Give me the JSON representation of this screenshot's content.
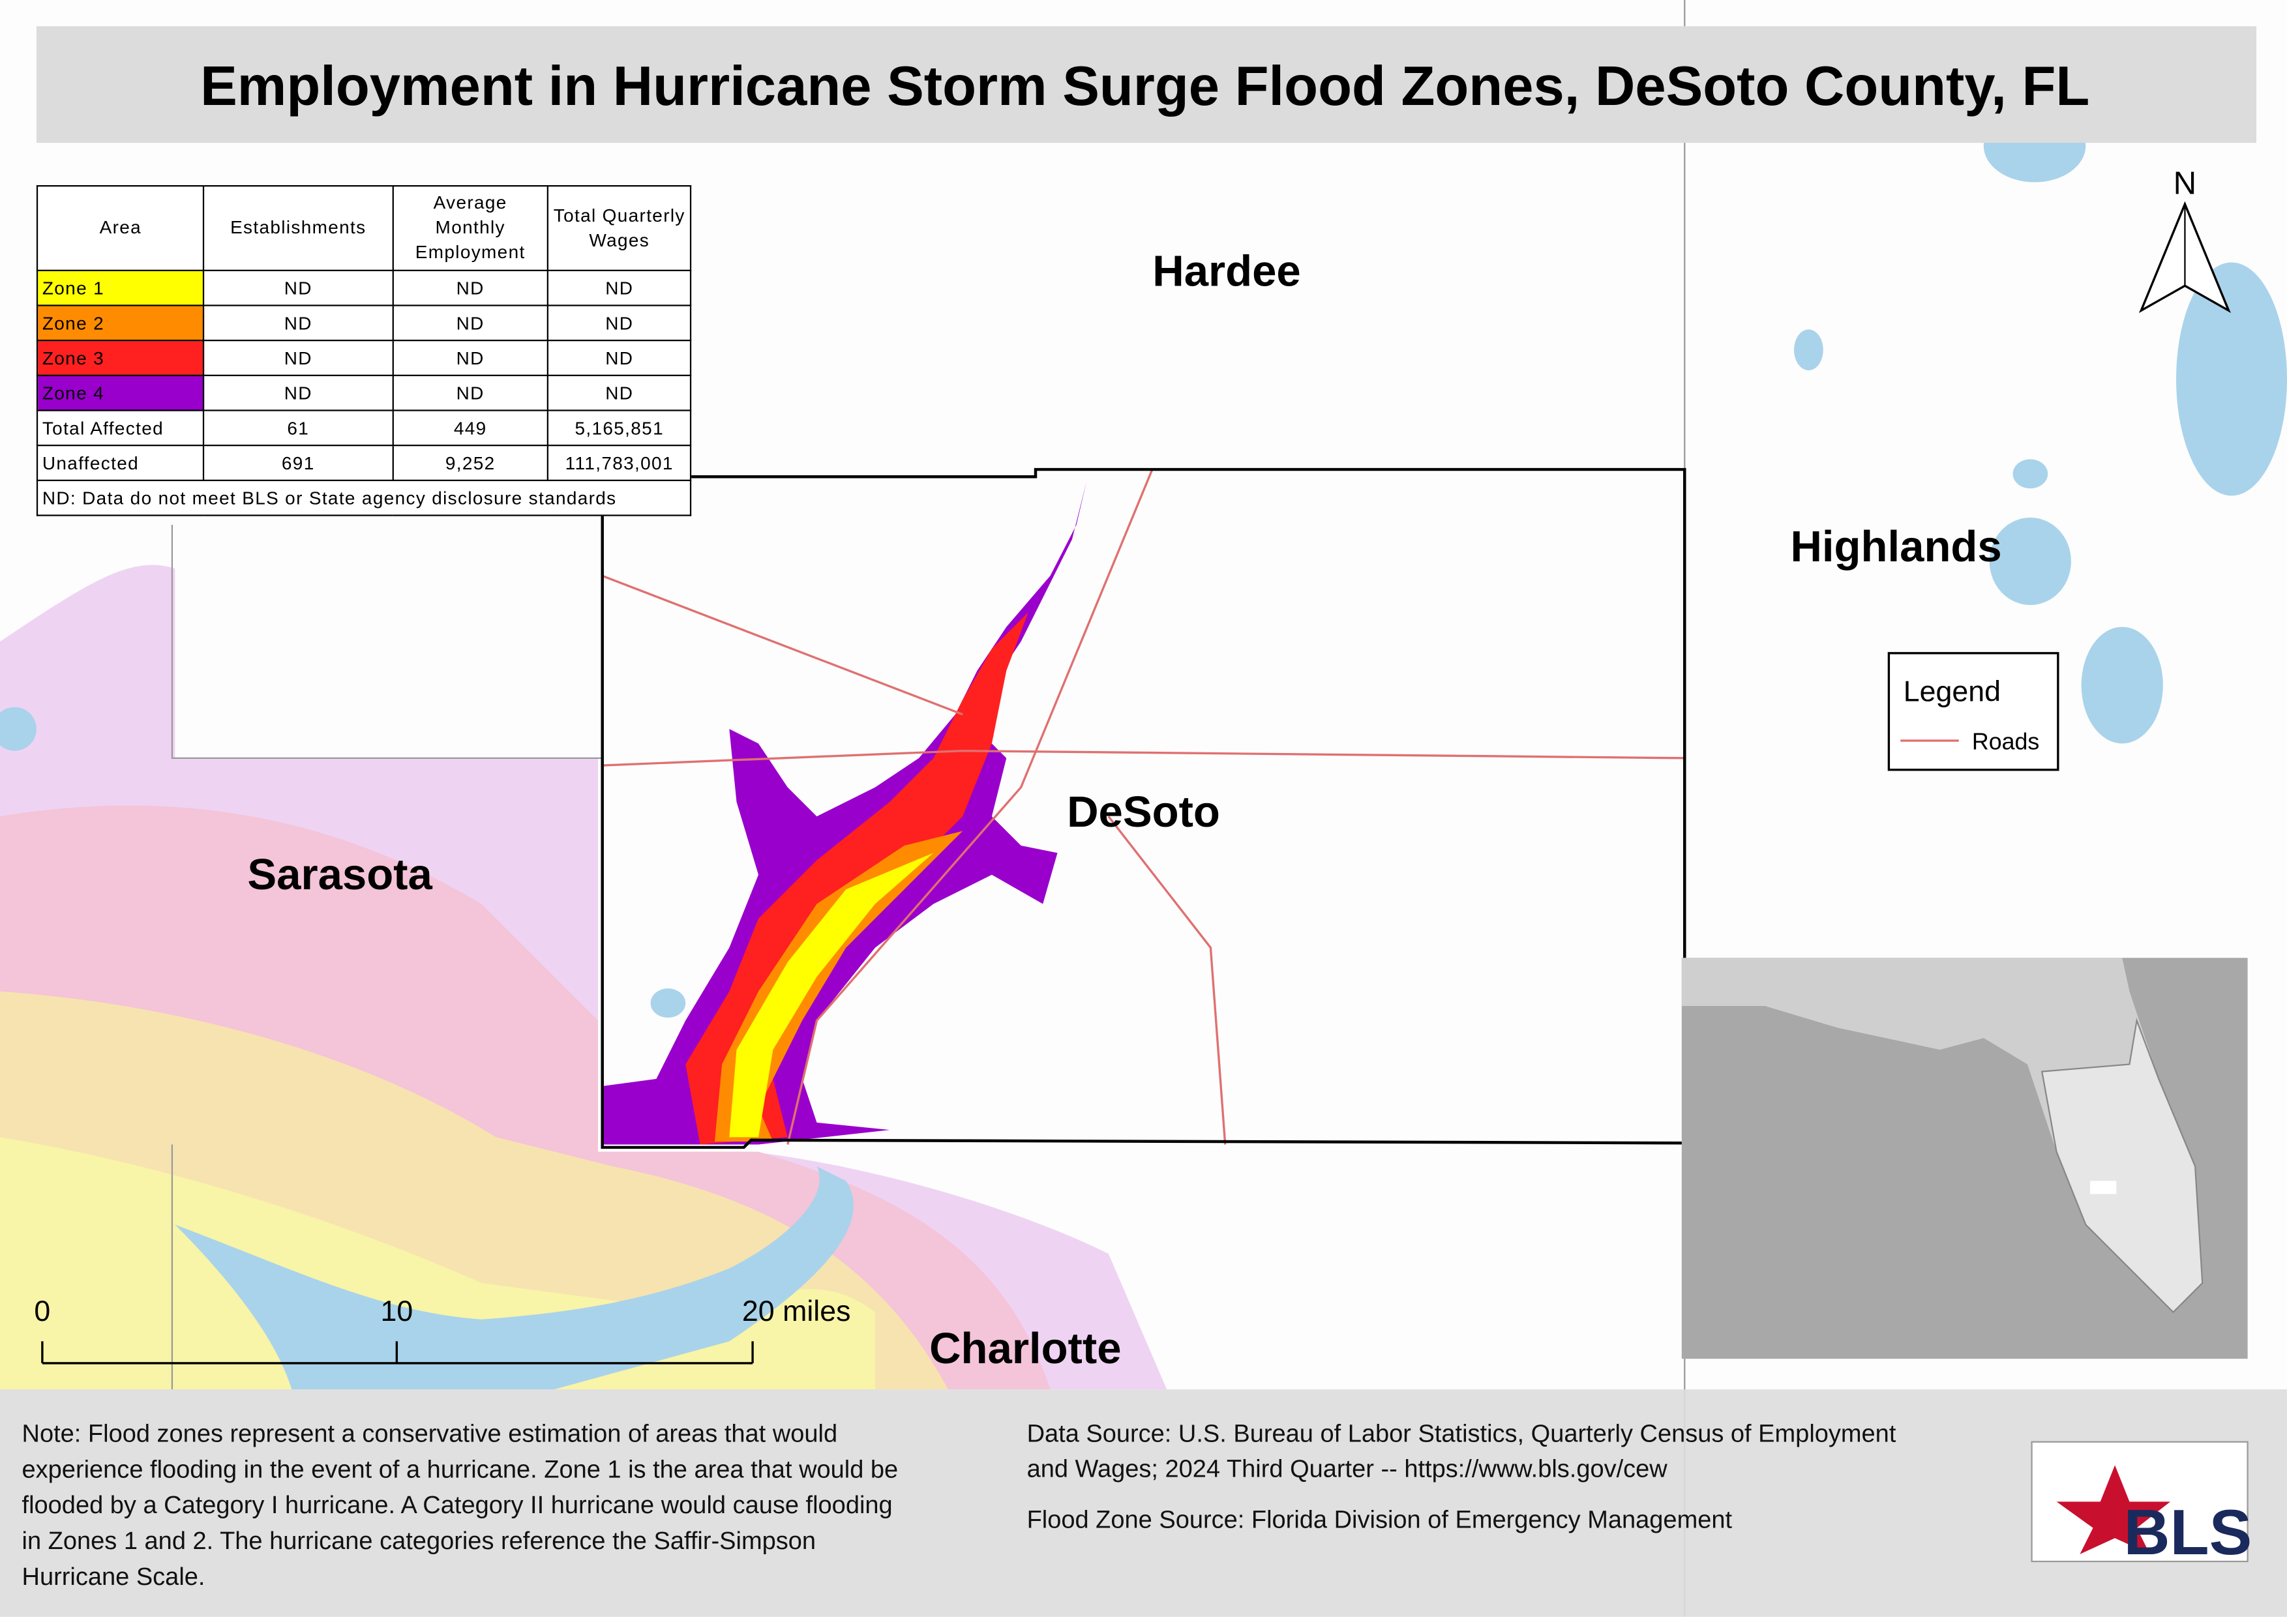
{
  "header": {
    "title": "Employment in Hurricane Storm Surge Flood Zones, DeSoto County, FL"
  },
  "table": {
    "columns": [
      "Area",
      "Establishments",
      "Average Monthly Employment",
      "Total Quarterly Wages"
    ],
    "rows": [
      [
        "Zone 1",
        "ND",
        "ND",
        "ND"
      ],
      [
        "Zone 2",
        "ND",
        "ND",
        "ND"
      ],
      [
        "Zone 3",
        "ND",
        "ND",
        "ND"
      ],
      [
        "Zone 4",
        "ND",
        "ND",
        "ND"
      ],
      [
        "Total Affected",
        "61",
        "449",
        "5,165,851"
      ],
      [
        "Unaffected",
        "691",
        "9,252",
        "111,783,001"
      ]
    ],
    "footnote": "ND: Data do not meet BLS or State agency disclosure standards"
  },
  "map": {
    "labels": [
      "Hardee",
      "Highlands",
      "DeSoto",
      "Sarasota",
      "Charlotte"
    ],
    "north": "N",
    "legend": {
      "title": "Legend",
      "items": [
        "Roads"
      ]
    },
    "scale_bar": [
      "0",
      "10",
      "20 miles"
    ]
  },
  "notes": {
    "note": [
      "Note: Flood zones represent a conservative estimation of areas that would",
      "experience flooding in the event of a hurricane. Zone 1 is the area that would be",
      "flooded by a Category I hurricane. A Category II hurricane would cause flooding",
      "in Zones 1 and 2. The hurricane categories reference the Saffir-Simpson",
      "Hurricane Scale."
    ],
    "data_source": [
      "Data Source: U.S. Bureau of Labor Statistics, Quarterly Census of Employment",
      "and Wages; 2024 Third Quarter -- https://www.bls.gov/cew"
    ],
    "flood_zone_source": "Flood Zone Source: Florida Division of Emergency Management"
  },
  "logo": "BLS"
}
